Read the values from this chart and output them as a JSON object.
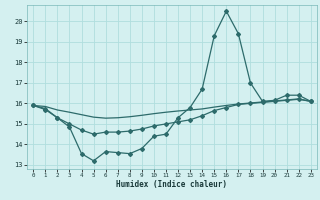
{
  "title": "",
  "xlabel": "Humidex (Indice chaleur)",
  "xlim": [
    -0.5,
    23.5
  ],
  "ylim": [
    12.8,
    20.8
  ],
  "yticks": [
    13,
    14,
    15,
    16,
    17,
    18,
    19,
    20
  ],
  "xticks": [
    0,
    1,
    2,
    3,
    4,
    5,
    6,
    7,
    8,
    9,
    10,
    11,
    12,
    13,
    14,
    15,
    16,
    17,
    18,
    19,
    20,
    21,
    22,
    23
  ],
  "background_color": "#d4f0f0",
  "grid_color": "#b0dede",
  "line_color": "#2d6b6b",
  "line1_y": [
    15.9,
    15.75,
    15.3,
    14.85,
    13.55,
    13.2,
    13.65,
    13.6,
    13.55,
    13.8,
    14.4,
    14.5,
    15.3,
    15.8,
    16.7,
    19.3,
    20.5,
    19.4,
    17.0,
    16.1,
    16.15,
    16.4,
    16.4,
    16.1
  ],
  "line2_y": [
    15.9,
    15.85,
    15.68,
    15.57,
    15.45,
    15.33,
    15.28,
    15.3,
    15.35,
    15.42,
    15.5,
    15.57,
    15.63,
    15.68,
    15.73,
    15.82,
    15.9,
    15.97,
    16.02,
    16.07,
    16.12,
    16.17,
    16.22,
    16.1
  ],
  "line3_y": [
    15.9,
    15.7,
    15.3,
    15.0,
    14.7,
    14.5,
    14.6,
    14.6,
    14.65,
    14.75,
    14.9,
    15.0,
    15.1,
    15.2,
    15.4,
    15.65,
    15.8,
    15.95,
    16.0,
    16.05,
    16.1,
    16.15,
    16.2,
    16.1
  ]
}
